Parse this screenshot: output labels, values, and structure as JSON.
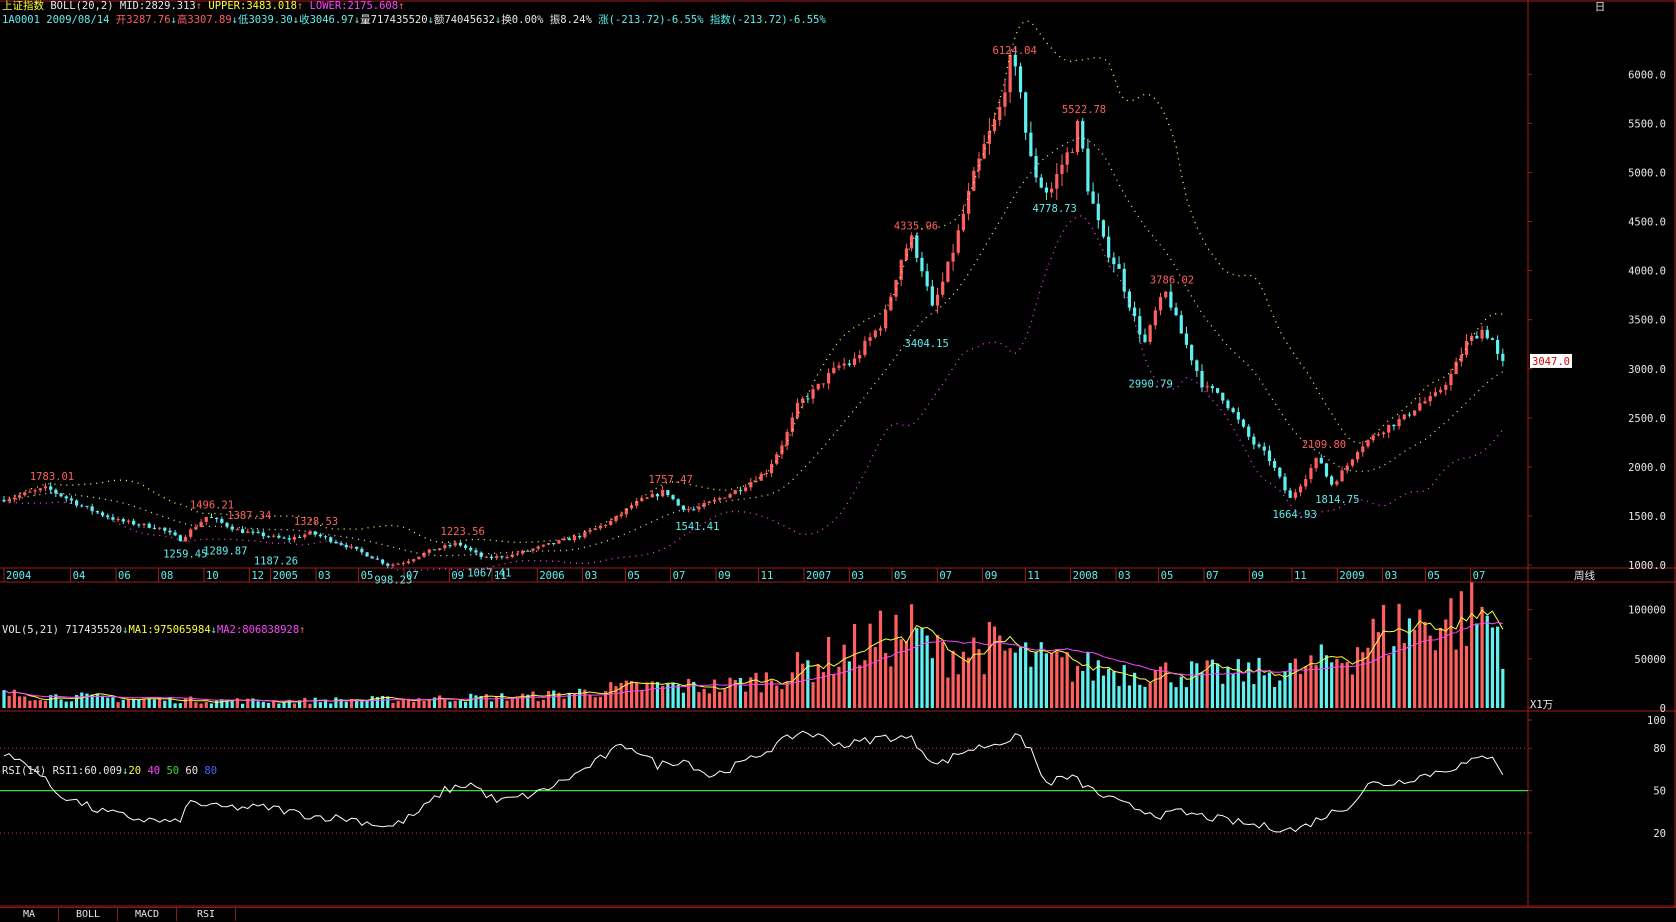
{
  "app": {
    "corner_glyph": "日"
  },
  "header": {
    "name": "上证指数",
    "boll": "BOLL(20,2)",
    "mid": "MID:2829.313",
    "upper": "UPPER:3483.018",
    "lower": "LOWER:2175.608",
    "code": "1A0001 2009/08/14",
    "open": "开3287.76",
    "high": "高3307.89",
    "low": "低3039.30",
    "close": "收3046.97",
    "vol": "量717435520",
    "amount": "额74045632",
    "turnover": "换0.00%",
    "amplitude": "振8.24%",
    "change": "涨(-213.72)-6.55%",
    "index_change": "指数(-213.72)-6.55%"
  },
  "volume_header": {
    "label": "VOL(5,21)",
    "value": "717435520",
    "ma1": "MA1:975065984",
    "ma2": "MA2:806838928"
  },
  "rsi_header": {
    "label": "RSI(14)",
    "value": "RSI1:60.009",
    "l1": "20",
    "l2": "40",
    "l3": "50",
    "l4": "60",
    "l5": "80"
  },
  "tabs": [
    {
      "label": "MA"
    },
    {
      "label": "BOLL"
    },
    {
      "label": "MACD"
    },
    {
      "label": "RSI"
    }
  ],
  "colors": {
    "up": "#ff5f5f",
    "down": "#5ff0f0",
    "upper": "#ffff55",
    "mid": "#dddddd",
    "lower": "#ff44ff",
    "ma1": "#ffff33",
    "ma2": "#ff44ff",
    "rsi": "#ffffff",
    "rsi_mid": "#33dd33",
    "border": "#a01c1c"
  },
  "chart_data": {
    "type": "candlestick",
    "title": "上证指数",
    "price_axis": {
      "ticks": [
        "1000.0",
        "1500.0",
        "2000.0",
        "2500.0",
        "3000.0",
        "3500.0",
        "4000.0",
        "4500.0",
        "5000.0",
        "5500.0",
        "6000.0"
      ],
      "range": [
        950,
        6400
      ]
    },
    "current_price_label": "3047.0",
    "x_axis": {
      "unit_label": "周线",
      "ticks": [
        [
          "2004",
          2004.0
        ],
        [
          "04",
          2004.25
        ],
        [
          "06",
          2004.42
        ],
        [
          "08",
          2004.58
        ],
        [
          "10",
          2004.75
        ],
        [
          "12",
          2004.92
        ],
        [
          "2005",
          2005.0
        ],
        [
          "03",
          2005.17
        ],
        [
          "05",
          2005.33
        ],
        [
          "07",
          2005.5
        ],
        [
          "09",
          2005.67
        ],
        [
          "11",
          2005.83
        ],
        [
          "2006",
          2006.0
        ],
        [
          "03",
          2006.17
        ],
        [
          "05",
          2006.33
        ],
        [
          "07",
          2006.5
        ],
        [
          "09",
          2006.67
        ],
        [
          "11",
          2006.83
        ],
        [
          "2007",
          2007.0
        ],
        [
          "03",
          2007.17
        ],
        [
          "05",
          2007.33
        ],
        [
          "07",
          2007.5
        ],
        [
          "09",
          2007.67
        ],
        [
          "11",
          2007.83
        ],
        [
          "2008",
          2008.0
        ],
        [
          "03",
          2008.17
        ],
        [
          "05",
          2008.33
        ],
        [
          "07",
          2008.5
        ],
        [
          "09",
          2008.67
        ],
        [
          "11",
          2008.83
        ],
        [
          "2009",
          2009.0
        ],
        [
          "03",
          2009.17
        ],
        [
          "05",
          2009.33
        ],
        [
          "07",
          2009.5
        ]
      ],
      "range": [
        2004.0,
        2009.64
      ]
    },
    "anchors": [
      [
        2004.0,
        1665
      ],
      [
        2004.05,
        1690
      ],
      [
        2004.18,
        1783
      ],
      [
        2004.32,
        1590
      ],
      [
        2004.45,
        1450
      ],
      [
        2004.6,
        1380
      ],
      [
        2004.68,
        1260
      ],
      [
        2004.78,
        1496
      ],
      [
        2004.9,
        1350
      ],
      [
        2005.0,
        1300
      ],
      [
        2005.08,
        1260
      ],
      [
        2005.17,
        1328
      ],
      [
        2005.3,
        1200
      ],
      [
        2005.4,
        1080
      ],
      [
        2005.46,
        998
      ],
      [
        2005.52,
        1030
      ],
      [
        2005.62,
        1150
      ],
      [
        2005.72,
        1223
      ],
      [
        2005.82,
        1067
      ],
      [
        2005.92,
        1100
      ],
      [
        2006.05,
        1200
      ],
      [
        2006.18,
        1300
      ],
      [
        2006.3,
        1450
      ],
      [
        2006.38,
        1620
      ],
      [
        2006.45,
        1700
      ],
      [
        2006.5,
        1757
      ],
      [
        2006.55,
        1600
      ],
      [
        2006.6,
        1560
      ],
      [
        2006.68,
        1650
      ],
      [
        2006.78,
        1780
      ],
      [
        2006.88,
        1960
      ],
      [
        2006.95,
        2300
      ],
      [
        2007.0,
        2650
      ],
      [
        2007.06,
        2780
      ],
      [
        2007.1,
        2900
      ],
      [
        2007.16,
        3050
      ],
      [
        2007.2,
        3050
      ],
      [
        2007.25,
        3250
      ],
      [
        2007.32,
        3500
      ],
      [
        2007.38,
        4100
      ],
      [
        2007.42,
        4336
      ],
      [
        2007.46,
        4050
      ],
      [
        2007.5,
        3600
      ],
      [
        2007.55,
        3950
      ],
      [
        2007.6,
        4400
      ],
      [
        2007.65,
        4900
      ],
      [
        2007.7,
        5300
      ],
      [
        2007.75,
        5600
      ],
      [
        2007.79,
        6124
      ],
      [
        2007.83,
        5900
      ],
      [
        2007.86,
        5200
      ],
      [
        2007.9,
        4900
      ],
      [
        2007.94,
        4780
      ],
      [
        2007.98,
        5050
      ],
      [
        2008.03,
        5300
      ],
      [
        2008.05,
        5522
      ],
      [
        2008.08,
        4900
      ],
      [
        2008.14,
        4300
      ],
      [
        2008.2,
        4000
      ],
      [
        2008.26,
        3500
      ],
      [
        2008.3,
        3250
      ],
      [
        2008.34,
        3600
      ],
      [
        2008.38,
        3786
      ],
      [
        2008.42,
        3450
      ],
      [
        2008.46,
        3200
      ],
      [
        2008.52,
        2800
      ],
      [
        2008.58,
        2750
      ],
      [
        2008.64,
        2500
      ],
      [
        2008.7,
        2250
      ],
      [
        2008.76,
        2100
      ],
      [
        2008.8,
        1900
      ],
      [
        2008.84,
        1665
      ],
      [
        2008.9,
        1900
      ],
      [
        2008.95,
        2109
      ],
      [
        2008.98,
        1900
      ],
      [
        2009.0,
        1820
      ],
      [
        2009.05,
        1990
      ],
      [
        2009.1,
        2200
      ],
      [
        2009.15,
        2300
      ],
      [
        2009.2,
        2400
      ],
      [
        2009.27,
        2500
      ],
      [
        2009.33,
        2650
      ],
      [
        2009.38,
        2700
      ],
      [
        2009.45,
        2950
      ],
      [
        2009.5,
        3250
      ],
      [
        2009.56,
        3400
      ],
      [
        2009.6,
        3300
      ],
      [
        2009.63,
        3047
      ]
    ],
    "annotations": [
      {
        "text": "1783.01",
        "x": 2004.18,
        "price": 1783,
        "pos": "above",
        "color": "up"
      },
      {
        "text": "1259.45",
        "x": 2004.68,
        "price": 1260,
        "pos": "below",
        "color": "down"
      },
      {
        "text": "1496.21",
        "x": 2004.78,
        "price": 1496,
        "pos": "above",
        "color": "up"
      },
      {
        "text": "1289.87",
        "x": 2004.83,
        "price": 1290,
        "pos": "below",
        "color": "down"
      },
      {
        "text": "1387.34",
        "x": 2004.92,
        "price": 1387,
        "pos": "above",
        "color": "up"
      },
      {
        "text": "1187.26",
        "x": 2005.02,
        "price": 1187,
        "pos": "below",
        "color": "down"
      },
      {
        "text": "1328.53",
        "x": 2005.17,
        "price": 1328,
        "pos": "above",
        "color": "up"
      },
      {
        "text": "998.23",
        "x": 2005.46,
        "price": 998,
        "pos": "below",
        "color": "down"
      },
      {
        "text": "1223.56",
        "x": 2005.72,
        "price": 1223,
        "pos": "above",
        "color": "up"
      },
      {
        "text": "1067.41",
        "x": 2005.82,
        "price": 1067,
        "pos": "below",
        "color": "down"
      },
      {
        "text": "1757.47",
        "x": 2006.5,
        "price": 1757,
        "pos": "above",
        "color": "up"
      },
      {
        "text": "1541.41",
        "x": 2006.6,
        "price": 1541,
        "pos": "below",
        "color": "down"
      },
      {
        "text": "4335.96",
        "x": 2007.42,
        "price": 4336,
        "pos": "above",
        "color": "up"
      },
      {
        "text": "3404.15",
        "x": 2007.46,
        "price": 3404,
        "pos": "below",
        "color": "down"
      },
      {
        "text": "6124.04",
        "x": 2007.79,
        "price": 6124,
        "pos": "above",
        "color": "up"
      },
      {
        "text": "4778.73",
        "x": 2007.94,
        "price": 4779,
        "pos": "below",
        "color": "down"
      },
      {
        "text": "5522.78",
        "x": 2008.05,
        "price": 5522,
        "pos": "above",
        "color": "up"
      },
      {
        "text": "3786.02",
        "x": 2008.38,
        "price": 3786,
        "pos": "above",
        "color": "up"
      },
      {
        "text": "2990.79",
        "x": 2008.3,
        "price": 2990,
        "pos": "below",
        "color": "down"
      },
      {
        "text": "1664.93",
        "x": 2008.84,
        "price": 1665,
        "pos": "below",
        "color": "down"
      },
      {
        "text": "2109.80",
        "x": 2008.95,
        "price": 2109,
        "pos": "above",
        "color": "up"
      },
      {
        "text": "1814.75",
        "x": 2009.0,
        "price": 1815,
        "pos": "below",
        "color": "down"
      }
    ],
    "volume": {
      "unit_label": "X1万",
      "ticks": [
        "100000",
        "50000",
        "0"
      ],
      "range": [
        0,
        120000
      ],
      "anchors": [
        [
          2004.0,
          14000
        ],
        [
          2004.5,
          9000
        ],
        [
          2005.0,
          7000
        ],
        [
          2005.5,
          9000
        ],
        [
          2006.0,
          12000
        ],
        [
          2006.4,
          22000
        ],
        [
          2006.7,
          22000
        ],
        [
          2006.9,
          32000
        ],
        [
          2007.0,
          42000
        ],
        [
          2007.2,
          62000
        ],
        [
          2007.4,
          78000
        ],
        [
          2007.5,
          55000
        ],
        [
          2007.7,
          62000
        ],
        [
          2007.85,
          50000
        ],
        [
          2008.0,
          42000
        ],
        [
          2008.3,
          36000
        ],
        [
          2008.6,
          34000
        ],
        [
          2008.85,
          38000
        ],
        [
          2009.0,
          50000
        ],
        [
          2009.2,
          82000
        ],
        [
          2009.4,
          90000
        ],
        [
          2009.55,
          95000
        ],
        [
          2009.62,
          72000
        ]
      ]
    },
    "rsi": {
      "ticks": [
        "100",
        "80",
        "50",
        "20"
      ],
      "range": [
        15,
        100
      ],
      "anchors": [
        [
          2004.0,
          75
        ],
        [
          2004.1,
          68
        ],
        [
          2004.2,
          48
        ],
        [
          2004.35,
          36
        ],
        [
          2004.5,
          30
        ],
        [
          2004.65,
          27
        ],
        [
          2004.7,
          42
        ],
        [
          2004.8,
          38
        ],
        [
          2005.0,
          38
        ],
        [
          2005.15,
          32
        ],
        [
          2005.3,
          30
        ],
        [
          2005.45,
          24
        ],
        [
          2005.55,
          34
        ],
        [
          2005.65,
          50
        ],
        [
          2005.75,
          55
        ],
        [
          2005.85,
          42
        ],
        [
          2006.0,
          48
        ],
        [
          2006.15,
          62
        ],
        [
          2006.3,
          80
        ],
        [
          2006.35,
          82
        ],
        [
          2006.45,
          68
        ],
        [
          2006.55,
          72
        ],
        [
          2006.65,
          60
        ],
        [
          2006.8,
          72
        ],
        [
          2006.95,
          88
        ],
        [
          2007.0,
          92
        ],
        [
          2007.15,
          82
        ],
        [
          2007.3,
          88
        ],
        [
          2007.4,
          87
        ],
        [
          2007.5,
          68
        ],
        [
          2007.6,
          78
        ],
        [
          2007.75,
          85
        ],
        [
          2007.8,
          88
        ],
        [
          2007.85,
          80
        ],
        [
          2007.9,
          55
        ],
        [
          2008.0,
          60
        ],
        [
          2008.1,
          48
        ],
        [
          2008.2,
          40
        ],
        [
          2008.35,
          32
        ],
        [
          2008.4,
          35
        ],
        [
          2008.55,
          30
        ],
        [
          2008.7,
          25
        ],
        [
          2008.85,
          22
        ],
        [
          2008.95,
          32
        ],
        [
          2009.05,
          40
        ],
        [
          2009.12,
          55
        ],
        [
          2009.2,
          55
        ],
        [
          2009.35,
          62
        ],
        [
          2009.5,
          70
        ],
        [
          2009.58,
          76
        ],
        [
          2009.63,
          60
        ]
      ]
    }
  }
}
